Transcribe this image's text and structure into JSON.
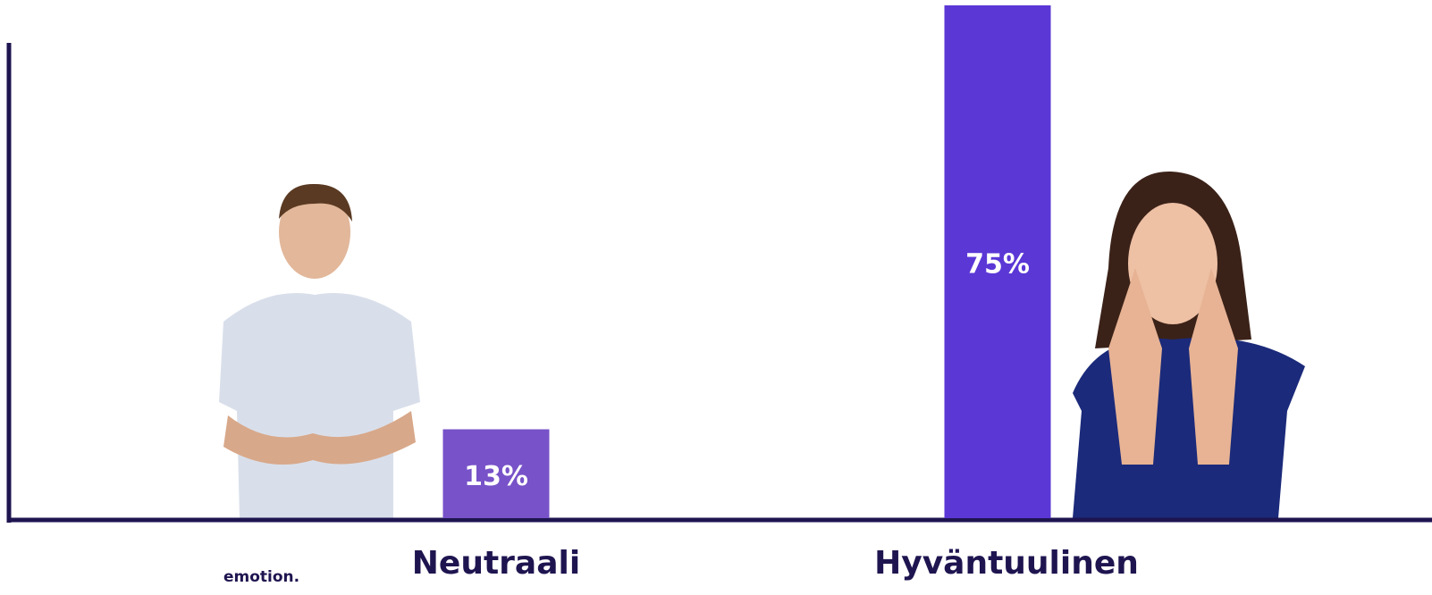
{
  "chart_data": {
    "type": "bar",
    "categories": [
      "Neutraali",
      "Hyväntuulinen"
    ],
    "values": [
      13,
      75
    ],
    "value_labels": [
      "13%",
      "75%"
    ],
    "colors": [
      "#7752c8",
      "#5b37d6"
    ],
    "ylim": [
      0,
      75
    ]
  },
  "logo": "emotion."
}
